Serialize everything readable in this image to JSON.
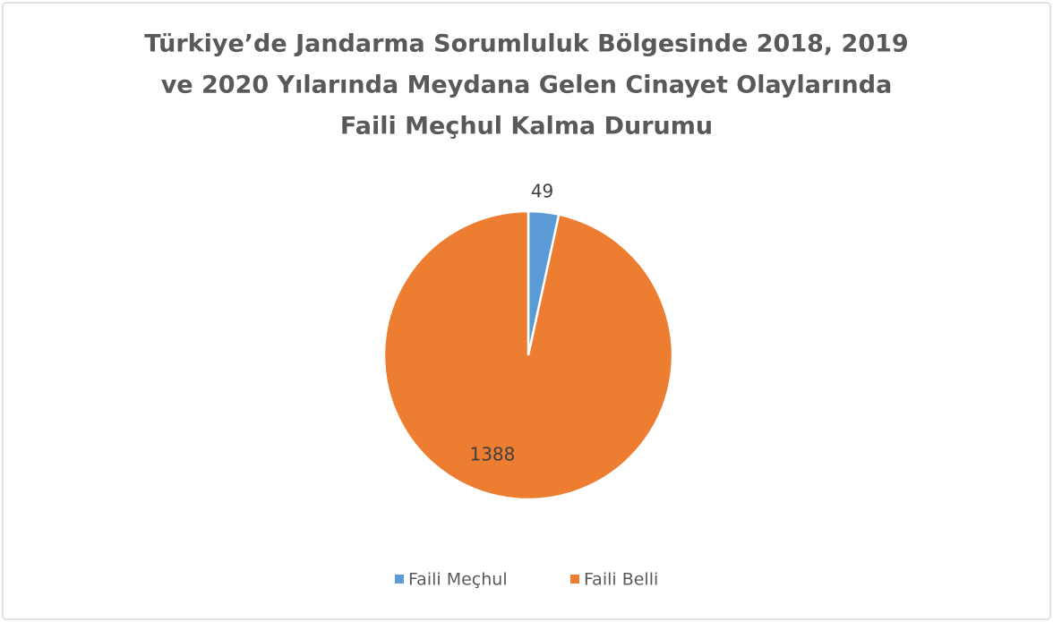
{
  "chart_data": {
    "type": "pie",
    "title": [
      "Türkiye’de Jandarma Sorumluluk Bölgesinde 2018, 2019",
      "ve 2020 Yılarında Meydana Gelen Cinayet Olaylarında",
      "Faili Meçhul Kalma Durumu"
    ],
    "categories": [
      "Faili Meçhul",
      "Faili Belli"
    ],
    "values": [
      49,
      1388
    ],
    "colors": [
      "#5b9bd5",
      "#ed7d31"
    ],
    "legend": "bottom"
  }
}
